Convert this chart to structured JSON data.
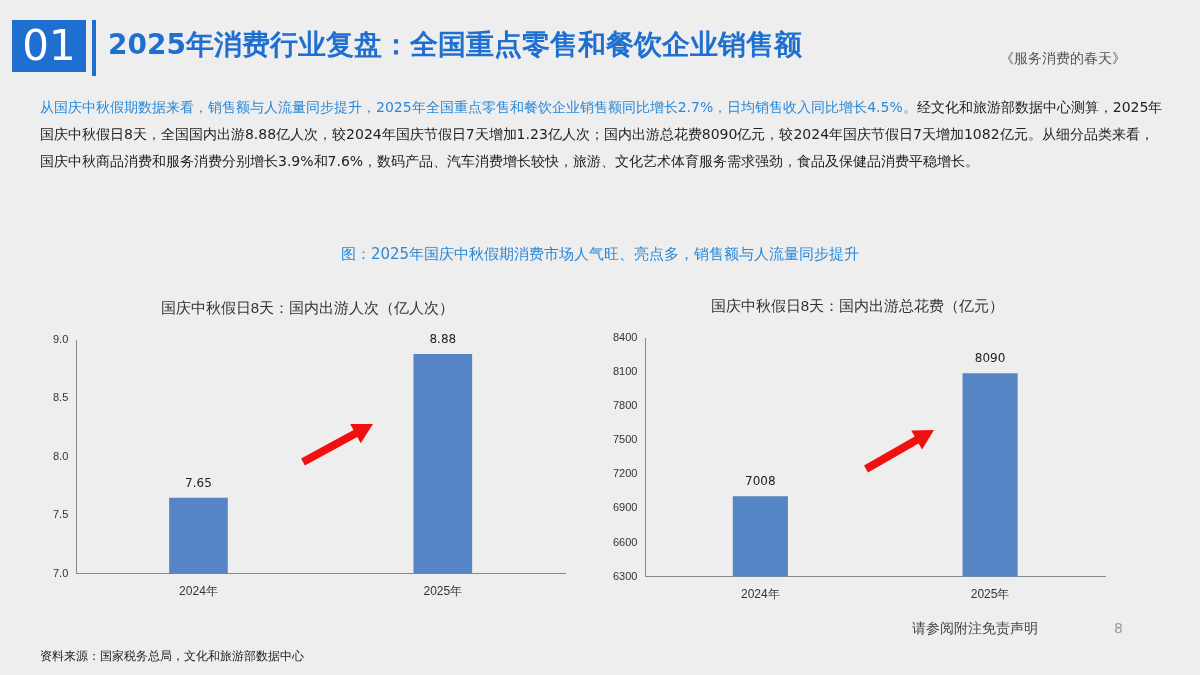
{
  "chart_data": [
    {
      "type": "other",
      "title": "2025年消费行业复盘：全国重点零售和餐饮企业销售额",
      "annotations": [
        "01",
        "《服务消费的春天》",
        "从国庆中秋假期数据来看，销售额与人流量同步提升，2025年全国重点零售和餐饮企业销售额同比增长2.7%，日均销售收入同比增长4.5%。",
        "经文化和旅游部数据中心测算，2025年国庆中秋假日8天，全国国内出游8.88亿人次，较2024年国庆节假日7天增加1.23亿人次；国内出游总花费8090亿元，较2024年国庆节假日7天增加1082亿元。从细分品类来看，国庆中秋商品消费和服务消费分别增长3.9%和7.6%，数码产品、汽车消费增长较快，旅游、文化艺术体育服务需求强劲，食品及保健品消费平稳增长。",
        "图：2025年国庆中秋假期消费市场人气旺、亮点多，销售额与人流量同步提升",
        "请参阅附注免责声明",
        "8",
        "资料来源：国家税务总局，文化和旅游部数据中心"
      ]
    },
    {
      "type": "bar",
      "title": "国庆中秋假日8天：国内出游人次（亿人次）",
      "categories": [
        "2024年",
        "2025年"
      ],
      "values": [
        7.65,
        8.88
      ],
      "color": "#5585c5",
      "ylim": [
        7.0,
        9.0
      ],
      "yticks": [
        {
          "value": 7,
          "label": "7.0"
        },
        7.5,
        {
          "value": 8,
          "label": "8.0"
        },
        8.5,
        {
          "value": 9,
          "label": "9.0"
        }
      ],
      "data_labels": true
    },
    {
      "type": "bar",
      "title": "国庆中秋假日8天：国内出游总花费（亿元）",
      "categories": [
        "2024年",
        "2025年"
      ],
      "values": [
        7008,
        8090
      ],
      "color": "#5585c5",
      "ylim": [
        6300,
        8400
      ],
      "yticks": [
        6300,
        6600,
        6900,
        7200,
        7500,
        7800,
        8100,
        8400
      ],
      "data_labels": true
    }
  ]
}
